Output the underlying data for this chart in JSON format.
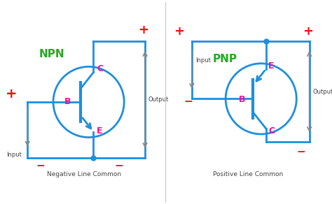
{
  "background_color": "#ffffff",
  "line_color": "#1e8fdc",
  "label_color_magenta": "#e0189a",
  "label_color_green": "#22aa22",
  "label_color_red": "#ee1111",
  "label_color_gray": "#888888",
  "label_color_dark": "#444444",
  "title1": "Negative Line Common",
  "title2": "Positive Line Common",
  "npn_label": "NPN",
  "pnp_label": "PNP"
}
